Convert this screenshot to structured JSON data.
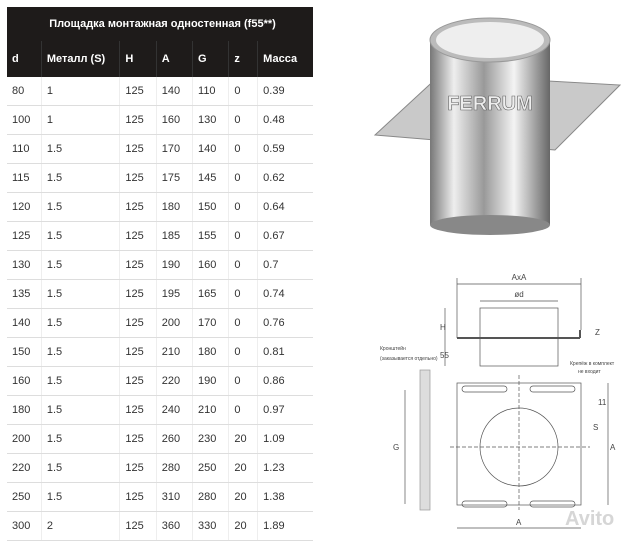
{
  "table": {
    "title": "Площадка монтажная одностенная (f55**)",
    "columns": [
      "d",
      "Металл (S)",
      "H",
      "A",
      "G",
      "z",
      "Масса"
    ],
    "rows": [
      [
        "80",
        "1",
        "125",
        "140",
        "110",
        "0",
        "0.39"
      ],
      [
        "100",
        "1",
        "125",
        "160",
        "130",
        "0",
        "0.48"
      ],
      [
        "110",
        "1.5",
        "125",
        "170",
        "140",
        "0",
        "0.59"
      ],
      [
        "115",
        "1.5",
        "125",
        "175",
        "145",
        "0",
        "0.62"
      ],
      [
        "120",
        "1.5",
        "125",
        "180",
        "150",
        "0",
        "0.64"
      ],
      [
        "125",
        "1.5",
        "125",
        "185",
        "155",
        "0",
        "0.67"
      ],
      [
        "130",
        "1.5",
        "125",
        "190",
        "160",
        "0",
        "0.7"
      ],
      [
        "135",
        "1.5",
        "125",
        "195",
        "165",
        "0",
        "0.74"
      ],
      [
        "140",
        "1.5",
        "125",
        "200",
        "170",
        "0",
        "0.76"
      ],
      [
        "150",
        "1.5",
        "125",
        "210",
        "180",
        "0",
        "0.81"
      ],
      [
        "160",
        "1.5",
        "125",
        "220",
        "190",
        "0",
        "0.86"
      ],
      [
        "180",
        "1.5",
        "125",
        "240",
        "210",
        "0",
        "0.97"
      ],
      [
        "200",
        "1.5",
        "125",
        "260",
        "230",
        "20",
        "1.09"
      ],
      [
        "220",
        "1.5",
        "125",
        "280",
        "250",
        "20",
        "1.23"
      ],
      [
        "250",
        "1.5",
        "125",
        "310",
        "280",
        "20",
        "1.38"
      ],
      [
        "300",
        "2",
        "125",
        "360",
        "330",
        "20",
        "1.89"
      ]
    ]
  },
  "product": {
    "brand": "FERRUM"
  },
  "drawing": {
    "labels": {
      "axa": "AxA",
      "d": "ød",
      "h": "H",
      "z": "Z",
      "h55": "55",
      "g": "G",
      "a": "A",
      "a_side": "A",
      "s": "S",
      "s11": "11",
      "bracket": "Кронштейн",
      "bracket_note": "(заказывается отдельно)",
      "fixing": "Крепёж в комплект",
      "fixing_note": "не входит"
    }
  },
  "watermark": "Avito"
}
